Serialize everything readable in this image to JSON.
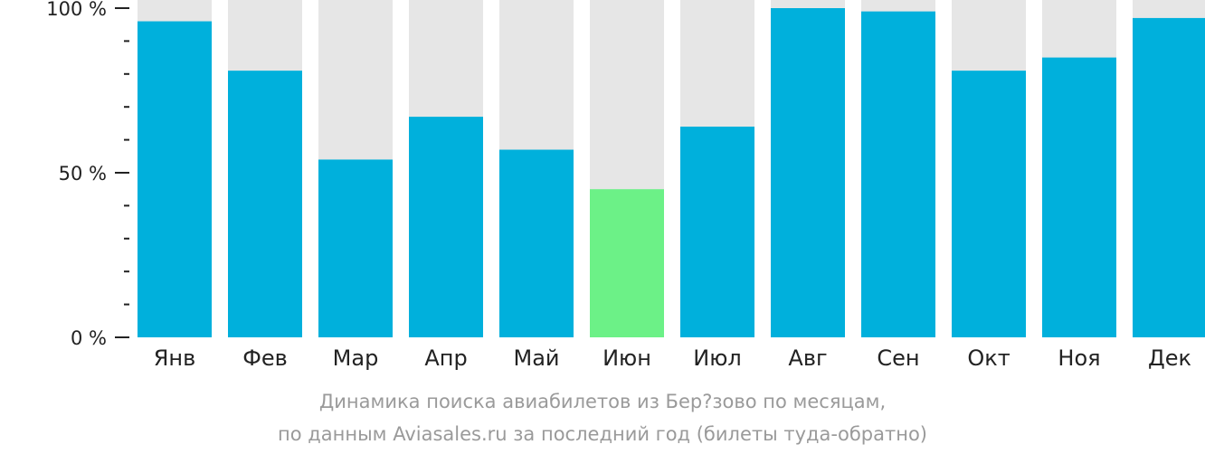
{
  "chart_data": {
    "type": "bar",
    "categories": [
      "Янв",
      "Фев",
      "Мар",
      "Апр",
      "Май",
      "Июн",
      "Июл",
      "Авг",
      "Сен",
      "Окт",
      "Ноя",
      "Дек"
    ],
    "values": [
      96,
      81,
      54,
      67,
      57,
      45,
      64,
      100,
      99,
      81,
      85,
      97
    ],
    "ylim": [
      0,
      100
    ],
    "yticks": [
      "0 %",
      "50 %",
      "100 %"
    ],
    "highlight_index": 5,
    "colors": {
      "bar": "#00b0dc",
      "highlight": "#6cf187",
      "background_bar": "#e6e6e6"
    },
    "caption_line1": "Динамика поиска авиабилетов из Бер?зово по месяцам,",
    "caption_line2": "по данным Aviasales.ru за последний год (билеты туда-обратно)"
  }
}
